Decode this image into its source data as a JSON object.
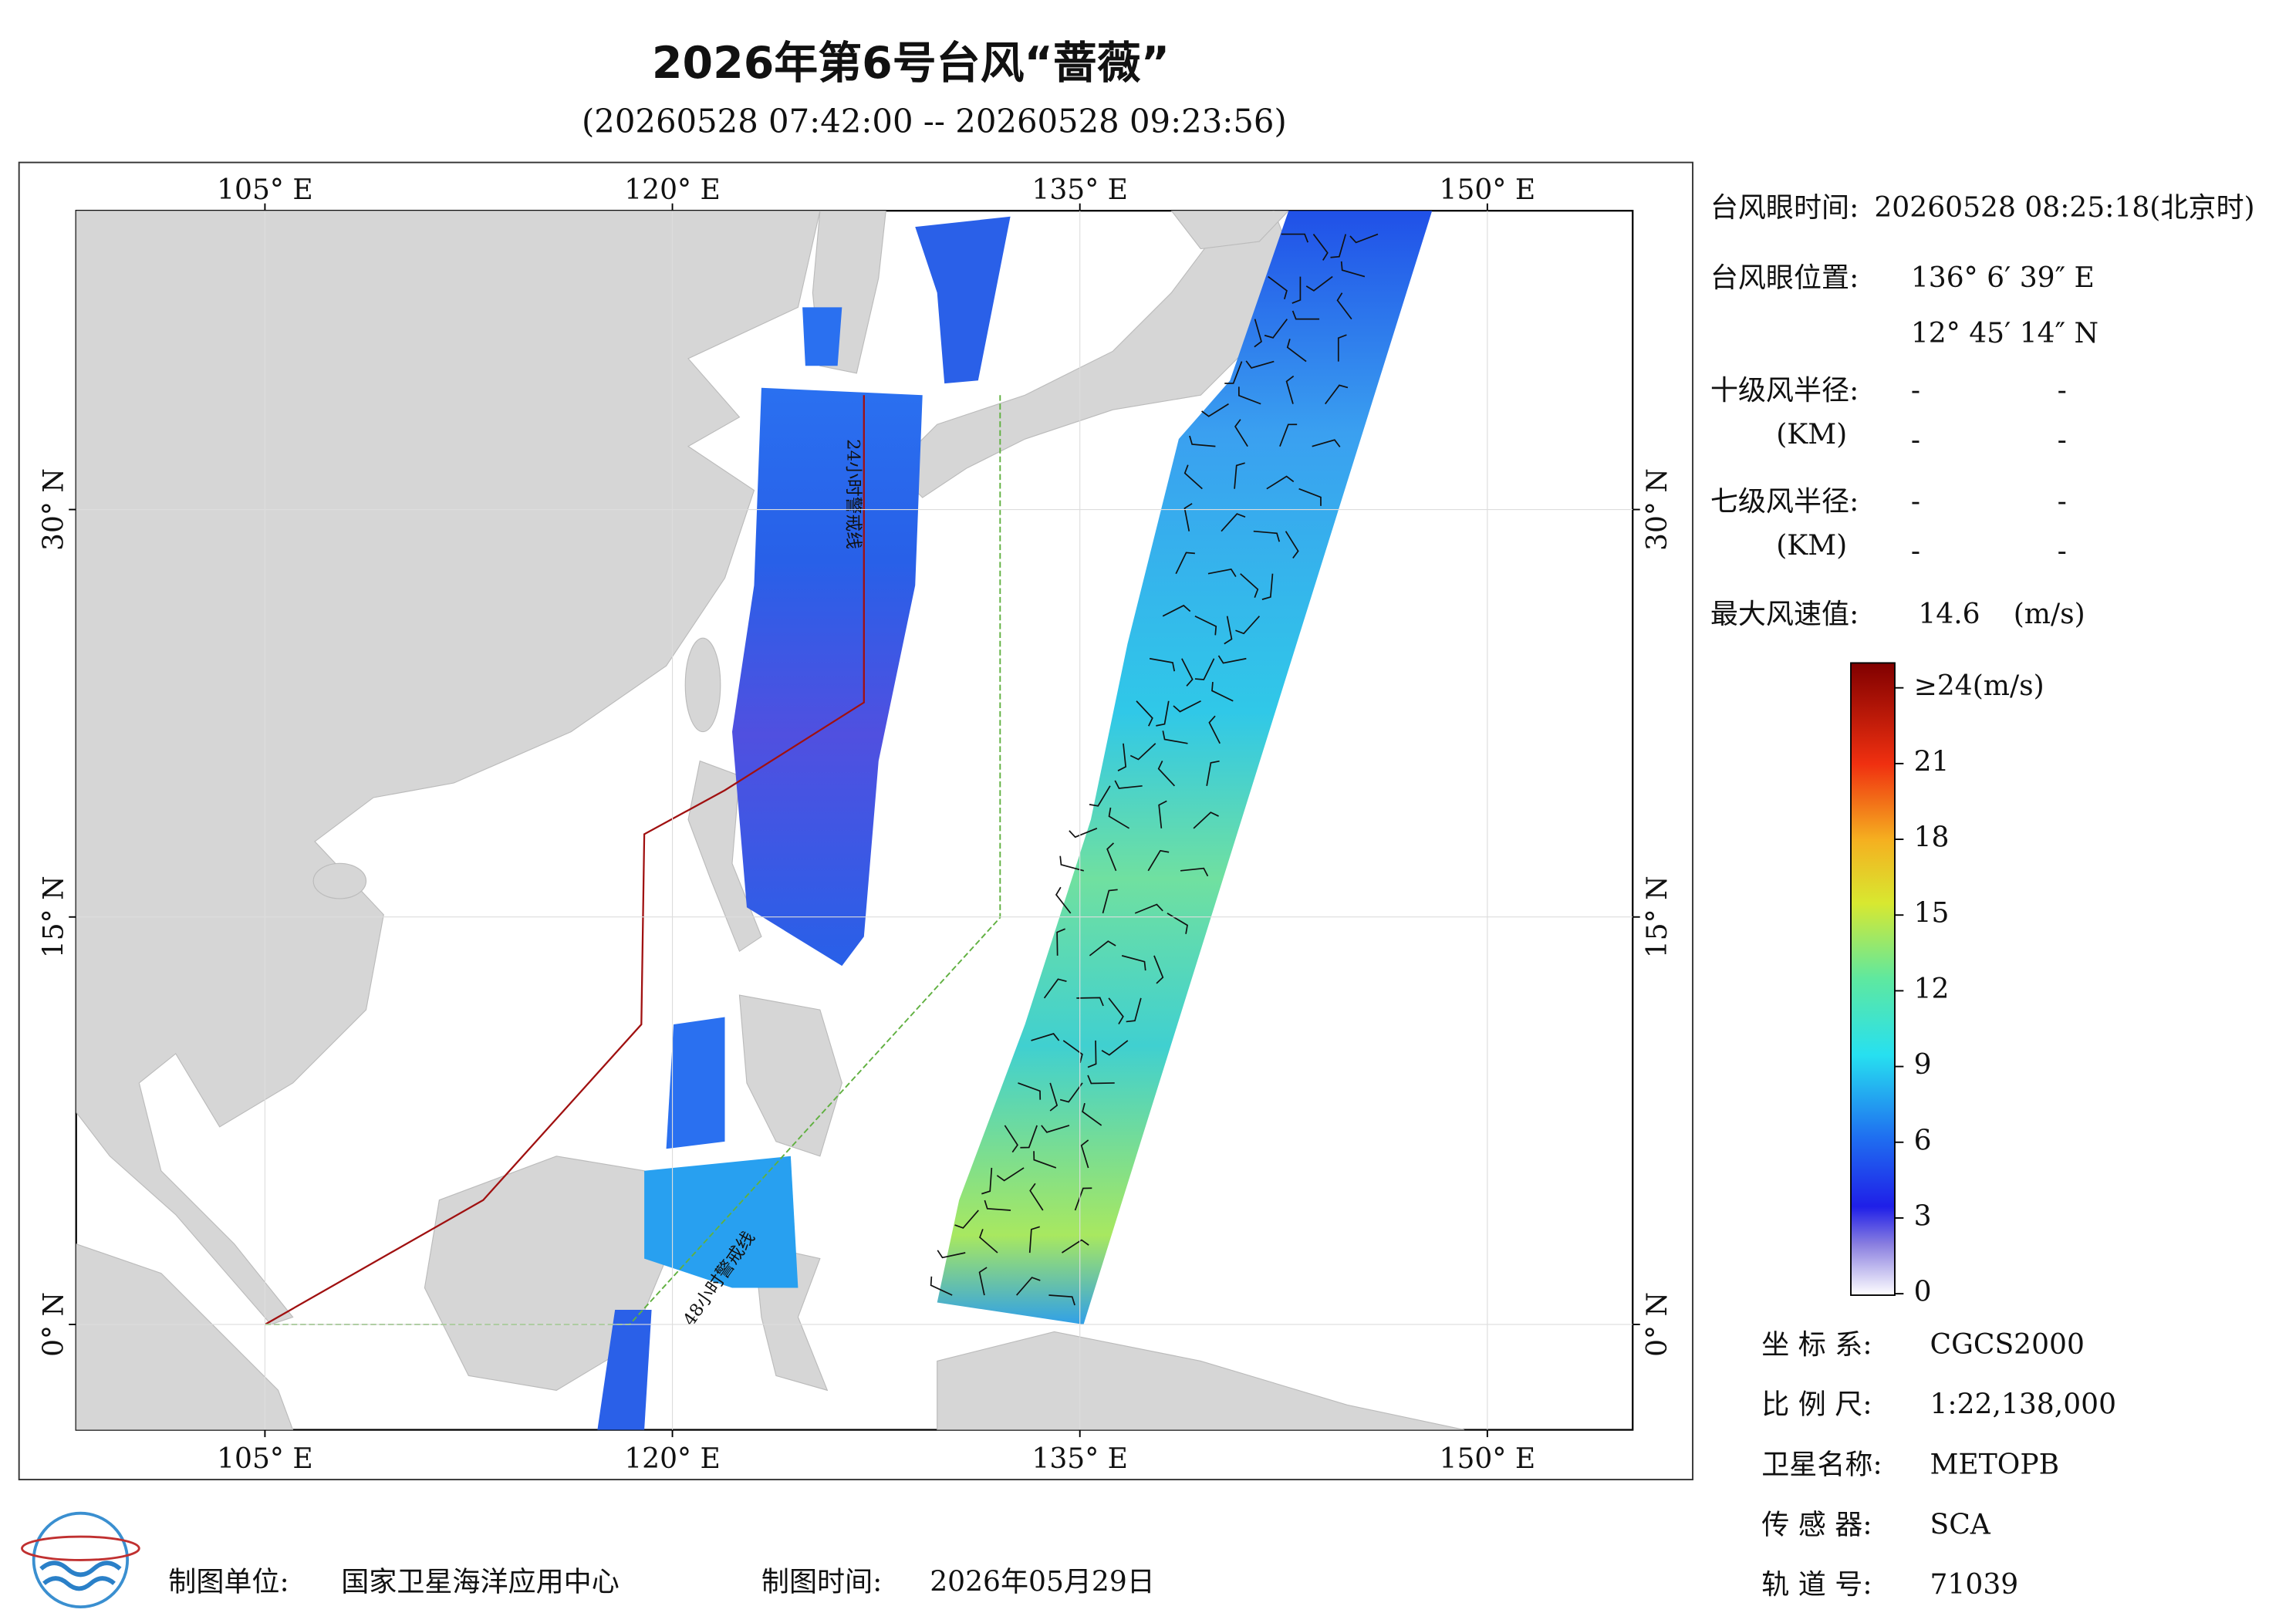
{
  "title": "2026年第6号台风“蔷薇”",
  "subtitle": "(20260528 07:42:00 -- 20260528 09:23:56)",
  "map": {
    "xlim": [
      98.05,
      155.35
    ],
    "ylim": [
      -3.88,
      41
    ],
    "lon_ticks": [
      {
        "value": 105,
        "label": "105° E"
      },
      {
        "value": 120,
        "label": "120° E"
      },
      {
        "value": 135,
        "label": "135° E"
      },
      {
        "value": 150,
        "label": "150° E"
      }
    ],
    "lat_ticks": [
      {
        "value": 0,
        "label": "0° N"
      },
      {
        "value": 15,
        "label": "15° N"
      },
      {
        "value": 30,
        "label": "30° N"
      }
    ],
    "warning_24h": "24小时警戒线",
    "warning_48h": "48小时警戒线"
  },
  "info": {
    "eye_time_label": "台风眼时间:",
    "eye_time": "20260528 08:25:18(北京时)",
    "eye_pos_label": "台风眼位置:",
    "eye_lon": "136° 6′ 39″ E",
    "eye_lat": "12° 45′ 14″ N",
    "r10_label": "十级风半径:",
    "r7_label": "七级风半径:",
    "km": "(KM)",
    "r10_values": [
      "-",
      "-",
      "-",
      "-"
    ],
    "r7_values": [
      "-",
      "-",
      "-",
      "-"
    ],
    "max_label": "最大风速值:",
    "max_value": "14.6",
    "max_unit": "(m/s)"
  },
  "colorbar": {
    "range": [
      0,
      24
    ],
    "ticks": [
      0,
      3,
      6,
      9,
      12,
      15,
      18,
      21,
      {
        "value": 24,
        "label": "≥24(m/s)"
      }
    ]
  },
  "meta": [
    {
      "label": "坐 标 系:",
      "value": "CGCS2000"
    },
    {
      "label": "比 例 尺:",
      "value": "1:22,138,000"
    },
    {
      "label": "卫星名称:",
      "value": "METOPB"
    },
    {
      "label": "传 感 器:",
      "value": "SCA"
    },
    {
      "label": "轨 道 号:",
      "value": "71039"
    }
  ],
  "footer": {
    "unit_label": "制图单位:",
    "unit": "国家卫星海洋应用中心",
    "time_label": "制图时间:",
    "time": "2026年05月29日"
  }
}
